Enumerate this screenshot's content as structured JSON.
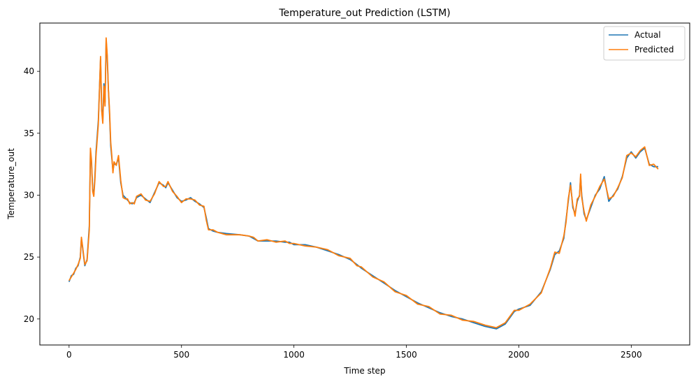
{
  "chart_data": {
    "type": "line",
    "title": "Temperature_out Prediction (LSTM)",
    "xlabel": "Time step",
    "ylabel": "Temperature_out",
    "xlim": [
      -130,
      2760
    ],
    "ylim": [
      17.9,
      43.9
    ],
    "xticks": [
      0,
      500,
      1000,
      1500,
      2000,
      2500
    ],
    "yticks": [
      20,
      25,
      30,
      35,
      40
    ],
    "grid": false,
    "legend_position": "upper right",
    "series": [
      {
        "name": "Actual",
        "color": "#1f77b4",
        "x": [
          0,
          10,
          20,
          30,
          40,
          50,
          55,
          60,
          65,
          70,
          80,
          90,
          95,
          100,
          105,
          110,
          115,
          120,
          130,
          140,
          145,
          150,
          155,
          160,
          165,
          170,
          175,
          180,
          185,
          190,
          195,
          200,
          210,
          220,
          230,
          240,
          250,
          260,
          270,
          280,
          290,
          300,
          320,
          340,
          360,
          380,
          400,
          420,
          430,
          440,
          460,
          480,
          500,
          520,
          540,
          560,
          580,
          600,
          610,
          620,
          640,
          660,
          700,
          760,
          800,
          820,
          840,
          880,
          920,
          960,
          980,
          1000,
          1050,
          1100,
          1150,
          1200,
          1250,
          1280,
          1300,
          1350,
          1400,
          1450,
          1500,
          1550,
          1600,
          1650,
          1700,
          1750,
          1800,
          1850,
          1900,
          1940,
          1960,
          1980,
          2000,
          2050,
          2100,
          2140,
          2160,
          2180,
          2200,
          2210,
          2220,
          2230,
          2240,
          2250,
          2260,
          2270,
          2275,
          2280,
          2290,
          2300,
          2320,
          2340,
          2360,
          2380,
          2400,
          2420,
          2440,
          2460,
          2480,
          2500,
          2520,
          2540,
          2560,
          2580,
          2600,
          2620
        ],
        "values": [
          23.0,
          23.5,
          23.6,
          24.1,
          24.3,
          25.0,
          26.5,
          25.8,
          25.0,
          24.3,
          24.8,
          27.5,
          33.5,
          32.5,
          30.5,
          30.0,
          31.5,
          33.5,
          36.0,
          41.0,
          37.0,
          36.0,
          39.0,
          37.5,
          42.5,
          41.0,
          38.5,
          36.5,
          34.0,
          33.0,
          32.0,
          32.5,
          32.5,
          33.0,
          31.0,
          30.0,
          29.8,
          29.6,
          29.4,
          29.3,
          29.4,
          29.8,
          30.0,
          29.7,
          29.4,
          30.2,
          31.0,
          30.8,
          30.6,
          31.0,
          30.4,
          29.8,
          29.5,
          29.6,
          29.8,
          29.5,
          29.3,
          29.0,
          28.2,
          27.3,
          27.1,
          27.0,
          26.9,
          26.8,
          26.7,
          26.5,
          26.3,
          26.3,
          26.3,
          26.2,
          26.2,
          26.0,
          26.0,
          25.8,
          25.5,
          25.2,
          24.8,
          24.4,
          24.1,
          23.5,
          22.9,
          22.3,
          21.8,
          21.3,
          20.9,
          20.5,
          20.2,
          20.0,
          19.7,
          19.4,
          19.2,
          19.6,
          20.1,
          20.6,
          20.8,
          21.1,
          22.2,
          24.0,
          25.2,
          25.5,
          26.5,
          28.0,
          29.5,
          31.0,
          29.0,
          28.5,
          29.5,
          30.0,
          31.5,
          30.0,
          28.5,
          28.0,
          29.0,
          30.0,
          30.5,
          31.5,
          29.5,
          30.0,
          30.5,
          31.5,
          33.0,
          33.5,
          33.0,
          33.5,
          33.8,
          32.5,
          32.3,
          32.3
        ]
      },
      {
        "name": "Predicted",
        "color": "#ff7f0e",
        "x": [
          0,
          10,
          20,
          30,
          40,
          50,
          55,
          60,
          65,
          70,
          80,
          90,
          95,
          100,
          105,
          110,
          115,
          120,
          130,
          140,
          145,
          150,
          155,
          160,
          165,
          170,
          175,
          180,
          185,
          190,
          195,
          200,
          210,
          220,
          230,
          240,
          250,
          260,
          270,
          280,
          290,
          300,
          320,
          340,
          360,
          380,
          400,
          420,
          430,
          440,
          460,
          480,
          500,
          520,
          540,
          560,
          580,
          600,
          610,
          620,
          640,
          660,
          700,
          760,
          800,
          820,
          840,
          880,
          920,
          960,
          980,
          1000,
          1050,
          1100,
          1150,
          1200,
          1250,
          1280,
          1300,
          1350,
          1400,
          1450,
          1500,
          1550,
          1600,
          1650,
          1700,
          1750,
          1800,
          1850,
          1900,
          1940,
          1960,
          1980,
          2000,
          2050,
          2100,
          2140,
          2160,
          2180,
          2200,
          2210,
          2220,
          2230,
          2240,
          2250,
          2260,
          2270,
          2275,
          2280,
          2290,
          2300,
          2320,
          2340,
          2360,
          2380,
          2400,
          2420,
          2440,
          2460,
          2480,
          2500,
          2520,
          2540,
          2560,
          2580,
          2600,
          2620
        ],
        "values": [
          23.1,
          23.4,
          23.7,
          24.0,
          24.4,
          24.9,
          26.6,
          25.9,
          25.1,
          24.4,
          24.7,
          27.2,
          33.8,
          32.8,
          30.3,
          29.9,
          31.2,
          33.2,
          35.7,
          41.2,
          36.8,
          35.8,
          38.8,
          37.2,
          42.7,
          41.3,
          38.6,
          36.8,
          34.3,
          33.2,
          31.8,
          32.7,
          32.4,
          33.2,
          31.2,
          29.8,
          29.7,
          29.7,
          29.3,
          29.4,
          29.3,
          29.9,
          30.1,
          29.6,
          29.5,
          30.1,
          31.1,
          30.7,
          30.7,
          31.1,
          30.3,
          29.9,
          29.4,
          29.7,
          29.7,
          29.6,
          29.2,
          29.1,
          28.0,
          27.2,
          27.2,
          27.0,
          26.8,
          26.8,
          26.7,
          26.6,
          26.3,
          26.4,
          26.2,
          26.3,
          26.1,
          26.1,
          25.9,
          25.8,
          25.6,
          25.1,
          24.9,
          24.3,
          24.2,
          23.4,
          23.0,
          22.2,
          21.9,
          21.2,
          21.0,
          20.4,
          20.3,
          19.9,
          19.8,
          19.5,
          19.3,
          19.7,
          20.2,
          20.7,
          20.7,
          21.2,
          22.1,
          24.1,
          25.4,
          25.3,
          26.7,
          27.8,
          29.7,
          30.8,
          29.2,
          28.3,
          29.7,
          29.9,
          31.7,
          29.8,
          28.7,
          27.9,
          29.2,
          29.9,
          30.7,
          31.3,
          29.7,
          29.9,
          30.6,
          31.4,
          33.2,
          33.4,
          33.1,
          33.6,
          33.9,
          32.4,
          32.5,
          32.1
        ]
      }
    ]
  }
}
